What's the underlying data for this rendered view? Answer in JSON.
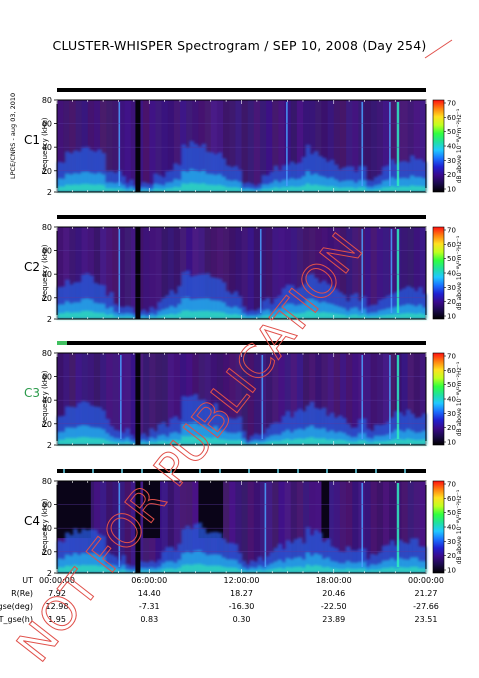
{
  "title": "CLUSTER-WHISPER Spectrogram / SEP 10, 2008 (Day 254)",
  "credit": "LPCE/CNRS - aug 03, 2010",
  "colorbar": {
    "ticks": [
      "70",
      "60",
      "50",
      "40",
      "30",
      "20",
      "10"
    ],
    "label": "dB above 10⁻⁸V²m⁻²Hz⁻¹",
    "colors": [
      "#000000",
      "#1a0a4a",
      "#3a0a8a",
      "#2020d0",
      "#1a70ff",
      "#20c8ff",
      "#20e0a0",
      "#30ff40",
      "#c0ff20",
      "#ffe020",
      "#ff8010",
      "#ff1010"
    ]
  },
  "chart_data": [
    {
      "type": "heatmap",
      "panel": "C1",
      "label_color": "#000000",
      "xlabel": "",
      "ylabel": "Frequency (kHz)",
      "ylim": [
        2,
        80
      ],
      "yticks": [
        "80",
        "60",
        "40",
        "20",
        "2"
      ],
      "bright_lines": [
        4.0,
        14.9,
        19.8,
        21.6,
        22.1
      ]
    },
    {
      "type": "heatmap",
      "panel": "C2",
      "label_color": "#000000",
      "xlabel": "",
      "ylabel": "Frequency (kHz)",
      "ylim": [
        2,
        80
      ],
      "yticks": [
        "80",
        "60",
        "40",
        "20",
        "2"
      ],
      "bright_lines": [
        4.0,
        13.2,
        19.8,
        21.7,
        22.1
      ]
    },
    {
      "type": "heatmap",
      "panel": "C3",
      "label_color": "#2a9a4a",
      "xlabel": "",
      "ylabel": "Frequency (kHz)",
      "ylim": [
        2,
        80
      ],
      "yticks": [
        "80",
        "60",
        "40",
        "20",
        "2"
      ],
      "bright_lines": [
        4.1,
        13.3,
        19.8,
        21.6,
        22.1
      ]
    },
    {
      "type": "heatmap",
      "panel": "C4",
      "label_color": "#000000",
      "xlabel": "",
      "ylabel": "Frequency (kHz)",
      "ylim": [
        2,
        80
      ],
      "yticks": [
        "80",
        "60",
        "40",
        "20",
        "2"
      ],
      "bright_lines": [
        4.0,
        13.5,
        19.8,
        22.1
      ]
    }
  ],
  "xaxis": {
    "ticks": [
      "00:00:00",
      "06:00:00",
      "12:00:00",
      "18:00:00",
      "00:00:00"
    ]
  },
  "ephemeris": {
    "rows": [
      {
        "label": "UT",
        "values": [
          "00:00:00",
          "06:00:00",
          "12:00:00",
          "18:00:00",
          "00:00:00"
        ]
      },
      {
        "label": "R(Re)",
        "values": [
          "7.92",
          "14.40",
          "18.27",
          "20.46",
          "21.27"
        ]
      },
      {
        "label": "Lat_gse(deg)",
        "values": [
          "12.98",
          "-7.31",
          "-16.30",
          "-22.50",
          "-27.66"
        ]
      },
      {
        "label": "LT_gse(h)",
        "values": [
          "1.95",
          "0.83",
          "0.30",
          "23.89",
          "23.51"
        ]
      }
    ]
  },
  "stamp_text": "NOT FOR PUBLICATION"
}
